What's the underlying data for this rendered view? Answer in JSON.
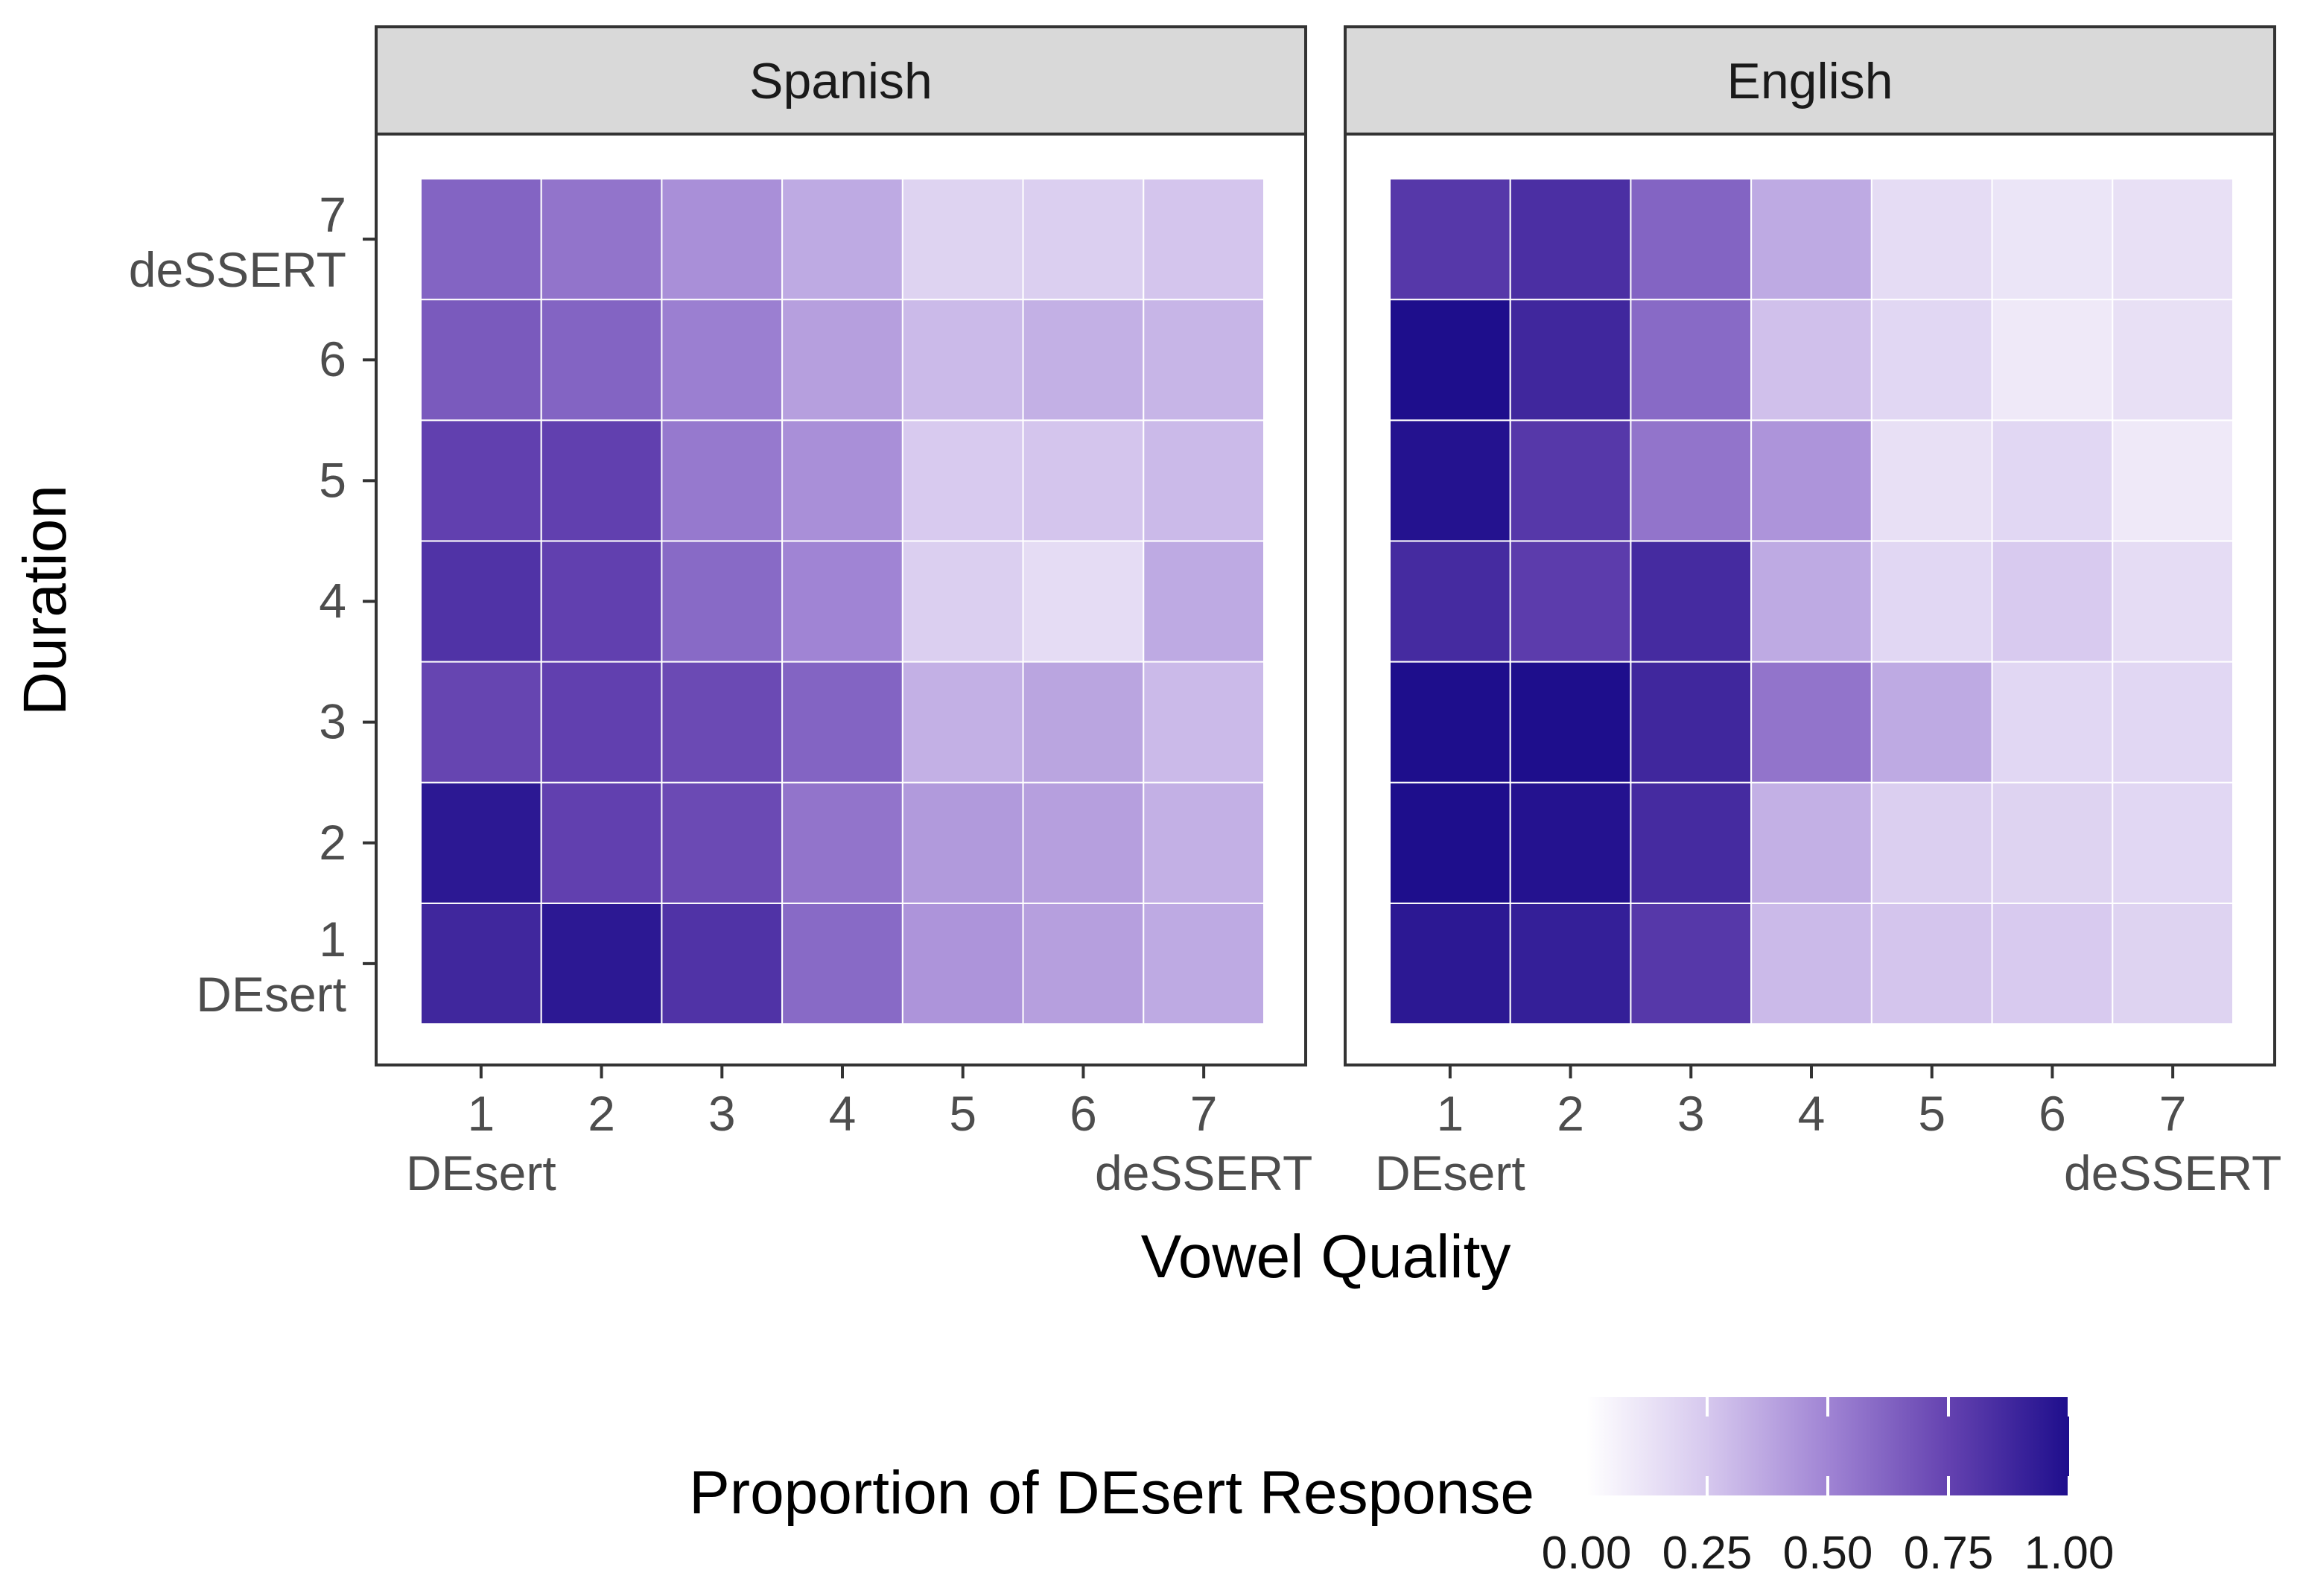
{
  "chart_data": {
    "type": "heatmap",
    "x_label": "Vowel Quality",
    "y_label": "Duration",
    "x_categories": [
      "1",
      "2",
      "3",
      "4",
      "5",
      "6",
      "7"
    ],
    "y_categories": [
      "1",
      "2",
      "3",
      "4",
      "5",
      "6",
      "7"
    ],
    "x_endpoint_labels": {
      "1": "DEsert",
      "7": "deSSERT"
    },
    "y_endpoint_labels": {
      "1": "DEsert",
      "7": "deSSERT"
    },
    "facets": [
      {
        "name": "Spanish",
        "values_by_duration": {
          "7": [
            0.62,
            0.56,
            0.46,
            0.36,
            0.2,
            0.22,
            0.26
          ],
          "6": [
            0.66,
            0.62,
            0.52,
            0.4,
            0.3,
            0.34,
            0.32
          ],
          "5": [
            0.76,
            0.76,
            0.54,
            0.46,
            0.24,
            0.26,
            0.3
          ],
          "4": [
            0.82,
            0.76,
            0.6,
            0.5,
            0.22,
            0.16,
            0.36
          ],
          "3": [
            0.74,
            0.76,
            0.72,
            0.62,
            0.34,
            0.38,
            0.3
          ],
          "2": [
            0.95,
            0.76,
            0.72,
            0.56,
            0.42,
            0.4,
            0.34
          ],
          "1": [
            0.88,
            0.95,
            0.82,
            0.6,
            0.44,
            0.4,
            0.36
          ]
        }
      },
      {
        "name": "English",
        "values_by_duration": {
          "7": [
            0.8,
            0.84,
            0.62,
            0.36,
            0.16,
            0.12,
            0.14
          ],
          "6": [
            1.0,
            0.88,
            0.6,
            0.28,
            0.18,
            0.1,
            0.14
          ],
          "5": [
            0.98,
            0.8,
            0.56,
            0.44,
            0.14,
            0.18,
            0.1
          ],
          "4": [
            0.86,
            0.78,
            0.86,
            0.36,
            0.18,
            0.24,
            0.16
          ],
          "3": [
            1.0,
            1.0,
            0.88,
            0.56,
            0.36,
            0.18,
            0.18
          ],
          "2": [
            1.0,
            0.98,
            0.86,
            0.34,
            0.22,
            0.2,
            0.18
          ],
          "1": [
            0.95,
            0.92,
            0.8,
            0.3,
            0.26,
            0.24,
            0.2
          ]
        }
      }
    ],
    "legend": {
      "title": "Proportion of DEsert Response",
      "position": "bottom",
      "ticks": [
        "0.00",
        "0.25",
        "0.50",
        "0.75",
        "1.00"
      ],
      "range": [
        0,
        1
      ],
      "color_low": "#ffffff",
      "color_high": "#1a0f8c"
    },
    "grid": false
  }
}
